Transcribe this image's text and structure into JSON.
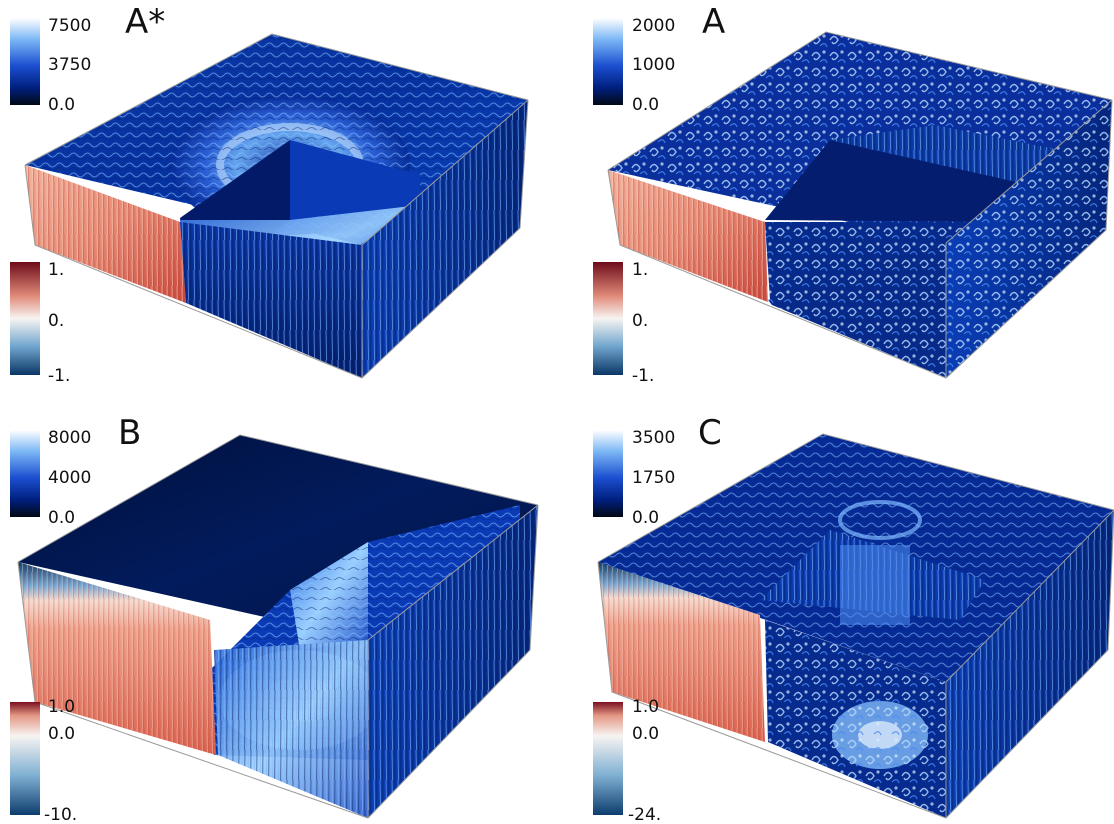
{
  "panels": [
    {
      "id": "a-star",
      "title": "A*",
      "top_colorbar": {
        "ticks": [
          "7500",
          "3750",
          "0.0"
        ]
      },
      "bottom_colorbar": {
        "ticks": [
          "1.",
          "0.",
          "-1."
        ]
      }
    },
    {
      "id": "a",
      "title": "A",
      "top_colorbar": {
        "ticks": [
          "2000",
          "1000",
          "0.0"
        ]
      },
      "bottom_colorbar": {
        "ticks": [
          "1.",
          "0.",
          "-1."
        ]
      }
    },
    {
      "id": "b",
      "title": "B",
      "top_colorbar": {
        "ticks": [
          "8000",
          "4000",
          "0.0"
        ]
      },
      "bottom_colorbar": {
        "ticks": [
          "1.0",
          "0.0",
          "-10."
        ]
      }
    },
    {
      "id": "c",
      "title": "C",
      "top_colorbar": {
        "ticks": [
          "3500",
          "1750",
          "0.0"
        ]
      },
      "bottom_colorbar": {
        "ticks": [
          "1.0",
          "0.0",
          "-24."
        ]
      }
    }
  ],
  "colors": {
    "blue_colormap": [
      "#000814",
      "#002a7a",
      "#1a4fd0",
      "#5aa0f0",
      "#ffffff"
    ],
    "diverging_colormap": [
      "#7a1020",
      "#e89a88",
      "#f7f3f1",
      "#7fb0d2",
      "#0d3d6e"
    ],
    "box_edge": "#9a9a9a"
  }
}
